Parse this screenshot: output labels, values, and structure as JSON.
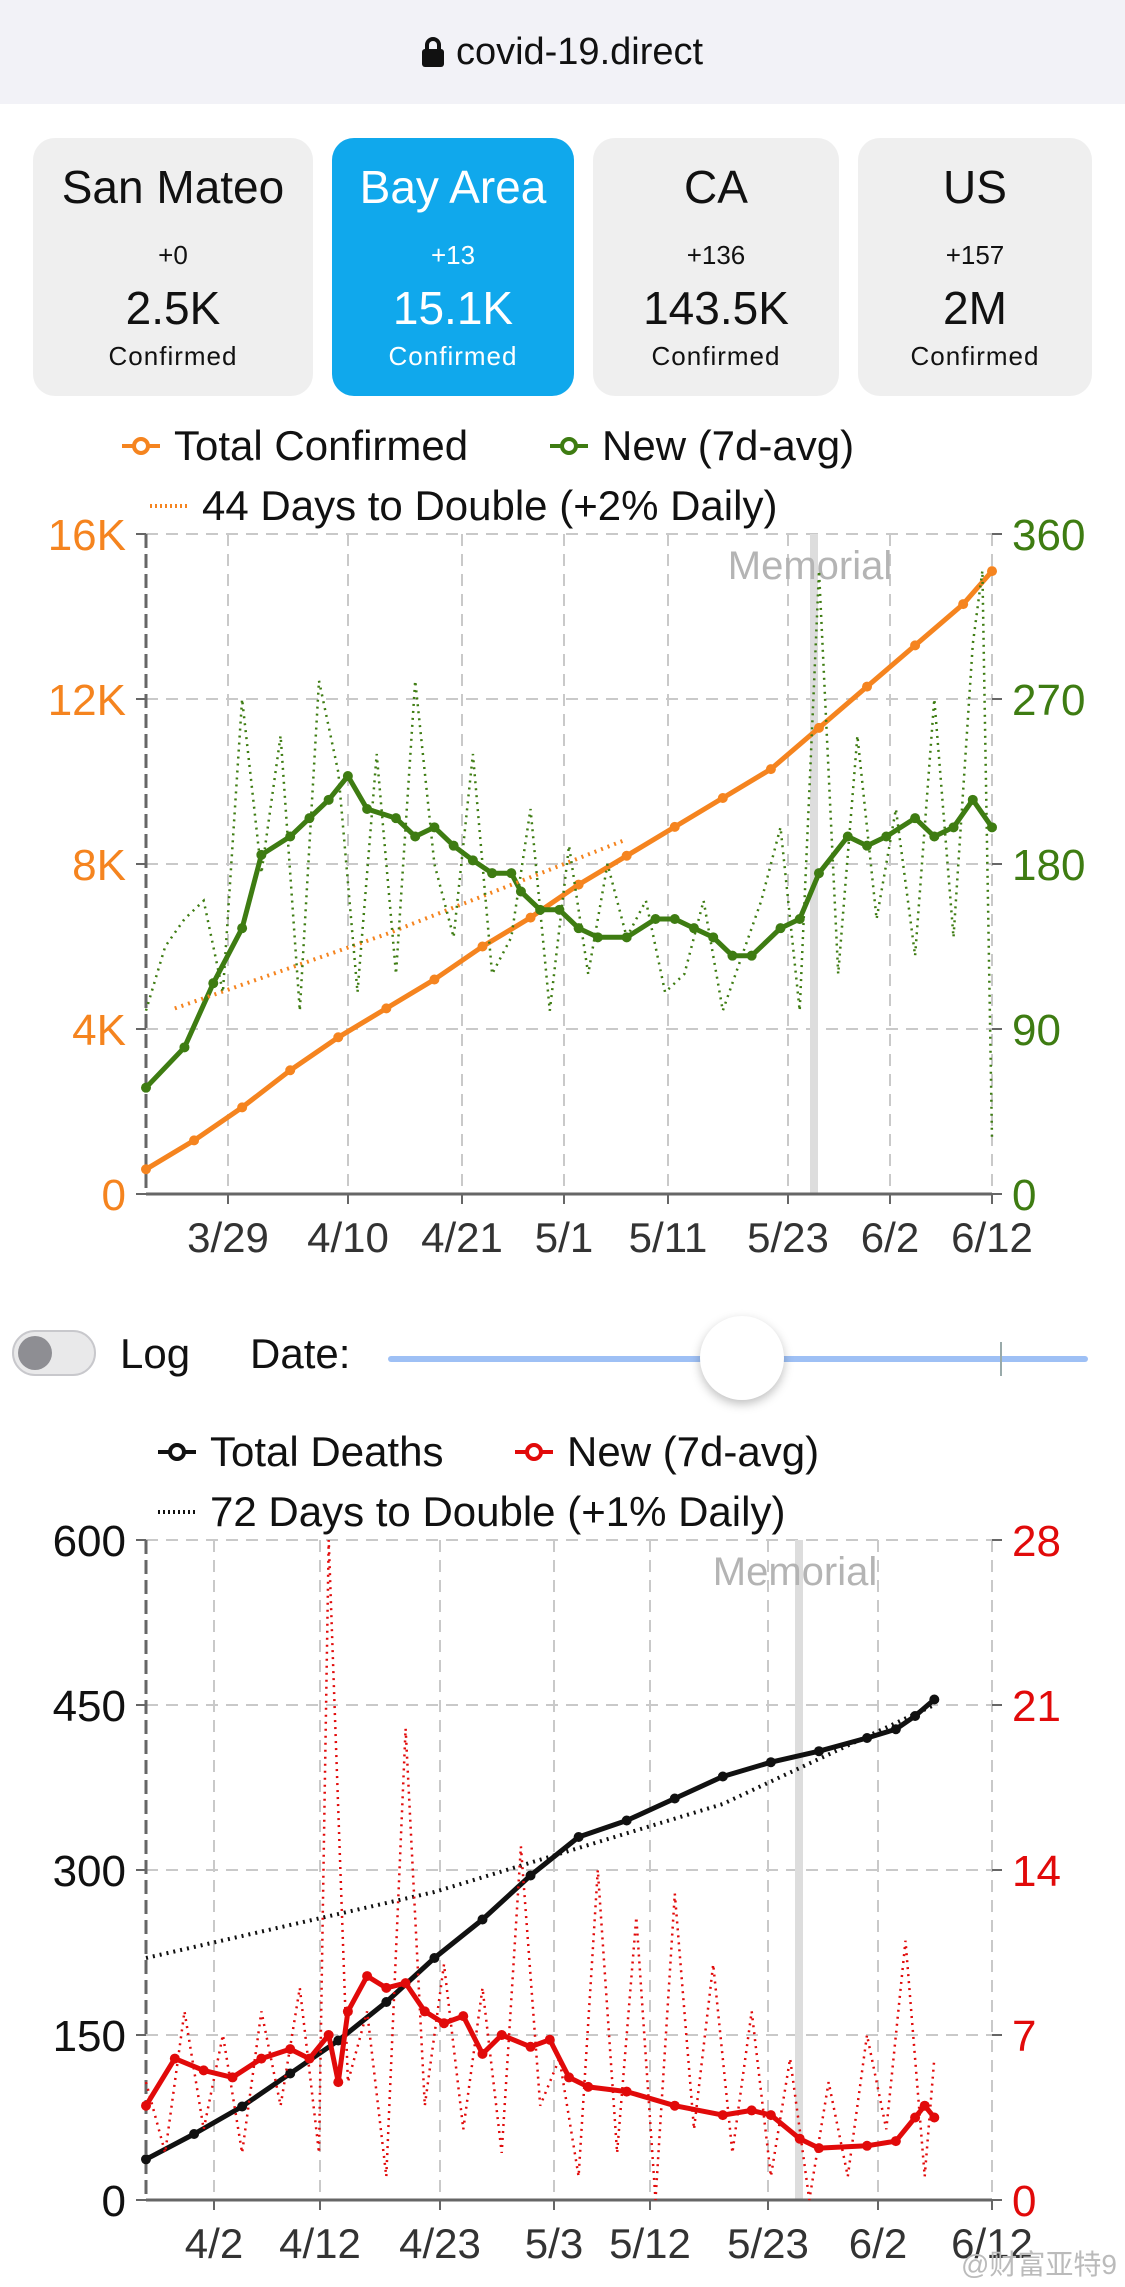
{
  "browser": {
    "url": "covid-19.direct"
  },
  "tabs": [
    {
      "name": "San Mateo",
      "delta": "+0",
      "value": "2.5K",
      "label": "Confirmed",
      "active": false
    },
    {
      "name": "Bay Area",
      "delta": "+13",
      "value": "15.1K",
      "label": "Confirmed",
      "active": true
    },
    {
      "name": "CA",
      "delta": "+136",
      "value": "143.5K",
      "label": "Confirmed",
      "active": false
    },
    {
      "name": "US",
      "delta": "+157",
      "value": "2M",
      "label": "Confirmed",
      "active": false
    }
  ],
  "controls": {
    "log_label": "Log",
    "date_label": "Date:",
    "log_enabled": false,
    "date_slider_fraction": 0.7
  },
  "watermark": "@财富亚特9",
  "chart_data": [
    {
      "type": "line",
      "legend": [
        "Total Confirmed",
        "New (7d-avg)",
        "44 Days to Double (+2% Daily)"
      ],
      "annotation": "Memorial",
      "annotation_date": "5/25",
      "x_ticks": [
        "3/29",
        "4/10",
        "4/21",
        "5/1",
        "5/11",
        "5/23",
        "6/2",
        "6/12"
      ],
      "y_left_ticks": [
        "0",
        "4K",
        "8K",
        "12K",
        "16K"
      ],
      "y_right_ticks": [
        "0",
        "90",
        "180",
        "270",
        "360"
      ],
      "ylim_left": [
        0,
        16000
      ],
      "ylim_right": [
        0,
        360
      ],
      "x_range": [
        "3/19",
        "6/12"
      ],
      "grid": true,
      "series": [
        {
          "name": "Total Confirmed",
          "axis": "left",
          "color": "#f5841f",
          "points": [
            [
              0,
              600
            ],
            [
              5,
              1300
            ],
            [
              10,
              2100
            ],
            [
              15,
              3000
            ],
            [
              20,
              3800
            ],
            [
              25,
              4500
            ],
            [
              30,
              5200
            ],
            [
              35,
              6000
            ],
            [
              40,
              6700
            ],
            [
              45,
              7500
            ],
            [
              50,
              8200
            ],
            [
              55,
              8900
            ],
            [
              60,
              9600
            ],
            [
              65,
              10300
            ],
            [
              70,
              11300
            ],
            [
              75,
              12300
            ],
            [
              80,
              13300
            ],
            [
              85,
              14300
            ],
            [
              88,
              15100
            ]
          ]
        },
        {
          "name": "New (7d-avg)",
          "axis": "right",
          "color": "#3e7c12",
          "points": [
            [
              0,
              58
            ],
            [
              4,
              80
            ],
            [
              7,
              115
            ],
            [
              10,
              145
            ],
            [
              12,
              185
            ],
            [
              15,
              195
            ],
            [
              17,
              205
            ],
            [
              19,
              215
            ],
            [
              21,
              228
            ],
            [
              23,
              210
            ],
            [
              26,
              205
            ],
            [
              28,
              195
            ],
            [
              30,
              200
            ],
            [
              32,
              190
            ],
            [
              34,
              182
            ],
            [
              36,
              175
            ],
            [
              38,
              175
            ],
            [
              39,
              165
            ],
            [
              41,
              155
            ],
            [
              43,
              155
            ],
            [
              45,
              145
            ],
            [
              47,
              140
            ],
            [
              50,
              140
            ],
            [
              53,
              150
            ],
            [
              55,
              150
            ],
            [
              57,
              145
            ],
            [
              59,
              140
            ],
            [
              61,
              130
            ],
            [
              63,
              130
            ],
            [
              66,
              145
            ],
            [
              68,
              150
            ],
            [
              70,
              175
            ],
            [
              73,
              195
            ],
            [
              75,
              190
            ],
            [
              77,
              195
            ],
            [
              80,
              205
            ],
            [
              82,
              195
            ],
            [
              84,
              200
            ],
            [
              86,
              215
            ],
            [
              88,
              200
            ]
          ]
        },
        {
          "name": "44 Days to Double (+2% Daily)",
          "axis": "left",
          "style": "dotted",
          "color": "#f5841f",
          "points": [
            [
              3,
              4500
            ],
            [
              25,
              6300
            ],
            [
              50,
              8600
            ]
          ]
        },
        {
          "name": "New (daily)",
          "axis": "right",
          "style": "dotted",
          "color": "#3e7c12",
          "points": [
            [
              0,
              100
            ],
            [
              2,
              135
            ],
            [
              4,
              150
            ],
            [
              6,
              160
            ],
            [
              8,
              110
            ],
            [
              10,
              270
            ],
            [
              12,
              175
            ],
            [
              14,
              250
            ],
            [
              16,
              100
            ],
            [
              18,
              280
            ],
            [
              20,
              230
            ],
            [
              22,
              110
            ],
            [
              24,
              240
            ],
            [
              26,
              120
            ],
            [
              28,
              280
            ],
            [
              30,
              180
            ],
            [
              32,
              140
            ],
            [
              34,
              240
            ],
            [
              36,
              120
            ],
            [
              38,
              140
            ],
            [
              40,
              210
            ],
            [
              42,
              100
            ],
            [
              44,
              190
            ],
            [
              46,
              120
            ],
            [
              48,
              180
            ],
            [
              50,
              140
            ],
            [
              52,
              160
            ],
            [
              54,
              110
            ],
            [
              56,
              120
            ],
            [
              58,
              160
            ],
            [
              60,
              100
            ],
            [
              62,
              130
            ],
            [
              64,
              160
            ],
            [
              66,
              200
            ],
            [
              68,
              100
            ],
            [
              70,
              340
            ],
            [
              72,
              120
            ],
            [
              74,
              250
            ],
            [
              76,
              150
            ],
            [
              78,
              210
            ],
            [
              80,
              130
            ],
            [
              82,
              270
            ],
            [
              84,
              140
            ],
            [
              86,
              300
            ],
            [
              87,
              340
            ],
            [
              88,
              30
            ]
          ]
        }
      ]
    },
    {
      "type": "line",
      "legend": [
        "Total Deaths",
        "New (7d-avg)",
        "72 Days to Double (+1% Daily)"
      ],
      "annotation": "Memorial",
      "annotation_date": "5/25",
      "x_ticks": [
        "4/2",
        "4/12",
        "4/23",
        "5/3",
        "5/12",
        "5/23",
        "6/2",
        "6/12"
      ],
      "y_left_ticks": [
        "0",
        "150",
        "300",
        "450",
        "600"
      ],
      "y_right_ticks": [
        "0",
        "7",
        "14",
        "21",
        "28"
      ],
      "ylim_left": [
        0,
        600
      ],
      "ylim_right": [
        0,
        28
      ],
      "x_range": [
        "3/27",
        "6/12"
      ],
      "grid": true,
      "series": [
        {
          "name": "Total Deaths",
          "axis": "left",
          "color": "#111111",
          "points": [
            [
              0,
              37
            ],
            [
              5,
              60
            ],
            [
              10,
              85
            ],
            [
              15,
              115
            ],
            [
              20,
              145
            ],
            [
              25,
              180
            ],
            [
              30,
              220
            ],
            [
              35,
              255
            ],
            [
              40,
              295
            ],
            [
              45,
              330
            ],
            [
              50,
              345
            ],
            [
              55,
              365
            ],
            [
              60,
              385
            ],
            [
              65,
              398
            ],
            [
              70,
              408
            ],
            [
              75,
              420
            ],
            [
              78,
              428
            ],
            [
              80,
              440
            ],
            [
              82,
              455
            ]
          ]
        },
        {
          "name": "New (7d-avg)",
          "axis": "right",
          "color": "#e10a0a",
          "points": [
            [
              0,
              4
            ],
            [
              3,
              6
            ],
            [
              6,
              5.5
            ],
            [
              9,
              5.2
            ],
            [
              12,
              6
            ],
            [
              15,
              6.4
            ],
            [
              17,
              6
            ],
            [
              19,
              7
            ],
            [
              20,
              5
            ],
            [
              21,
              8
            ],
            [
              23,
              9.5
            ],
            [
              25,
              9
            ],
            [
              27,
              9.2
            ],
            [
              29,
              8
            ],
            [
              31,
              7.5
            ],
            [
              33,
              7.8
            ],
            [
              35,
              6.2
            ],
            [
              37,
              7
            ],
            [
              40,
              6.5
            ],
            [
              42,
              6.8
            ],
            [
              44,
              5.2
            ],
            [
              46,
              4.8
            ],
            [
              50,
              4.6
            ],
            [
              55,
              4
            ],
            [
              60,
              3.6
            ],
            [
              63,
              3.8
            ],
            [
              65,
              3.6
            ],
            [
              68,
              2.6
            ],
            [
              70,
              2.2
            ],
            [
              75,
              2.3
            ],
            [
              78,
              2.5
            ],
            [
              80,
              3.5
            ],
            [
              81,
              4
            ],
            [
              82,
              3.5
            ]
          ]
        },
        {
          "name": "72 Days to Double (+1% Daily)",
          "axis": "left",
          "style": "dotted",
          "color": "#111111",
          "points": [
            [
              0,
              220
            ],
            [
              30,
              280
            ],
            [
              60,
              360
            ],
            [
              82,
              450
            ]
          ]
        },
        {
          "name": "New (daily)",
          "axis": "right",
          "style": "dotted",
          "color": "#e10a0a",
          "points": [
            [
              0,
              5
            ],
            [
              2,
              2
            ],
            [
              4,
              8
            ],
            [
              6,
              3
            ],
            [
              8,
              7
            ],
            [
              10,
              2
            ],
            [
              12,
              8
            ],
            [
              14,
              4
            ],
            [
              16,
              9
            ],
            [
              18,
              2
            ],
            [
              19,
              28
            ],
            [
              21,
              5
            ],
            [
              23,
              8
            ],
            [
              25,
              1
            ],
            [
              27,
              20
            ],
            [
              29,
              4
            ],
            [
              31,
              10
            ],
            [
              33,
              3
            ],
            [
              35,
              9
            ],
            [
              37,
              2
            ],
            [
              39,
              15
            ],
            [
              41,
              4
            ],
            [
              43,
              6
            ],
            [
              45,
              1
            ],
            [
              47,
              14
            ],
            [
              49,
              2
            ],
            [
              51,
              12
            ],
            [
              53,
              0
            ],
            [
              55,
              13
            ],
            [
              57,
              3
            ],
            [
              59,
              10
            ],
            [
              61,
              2
            ],
            [
              63,
              8
            ],
            [
              65,
              1
            ],
            [
              67,
              6
            ],
            [
              69,
              0
            ],
            [
              71,
              5
            ],
            [
              73,
              1
            ],
            [
              75,
              7
            ],
            [
              77,
              3
            ],
            [
              79,
              11
            ],
            [
              81,
              1
            ],
            [
              82,
              6
            ]
          ]
        }
      ]
    }
  ]
}
